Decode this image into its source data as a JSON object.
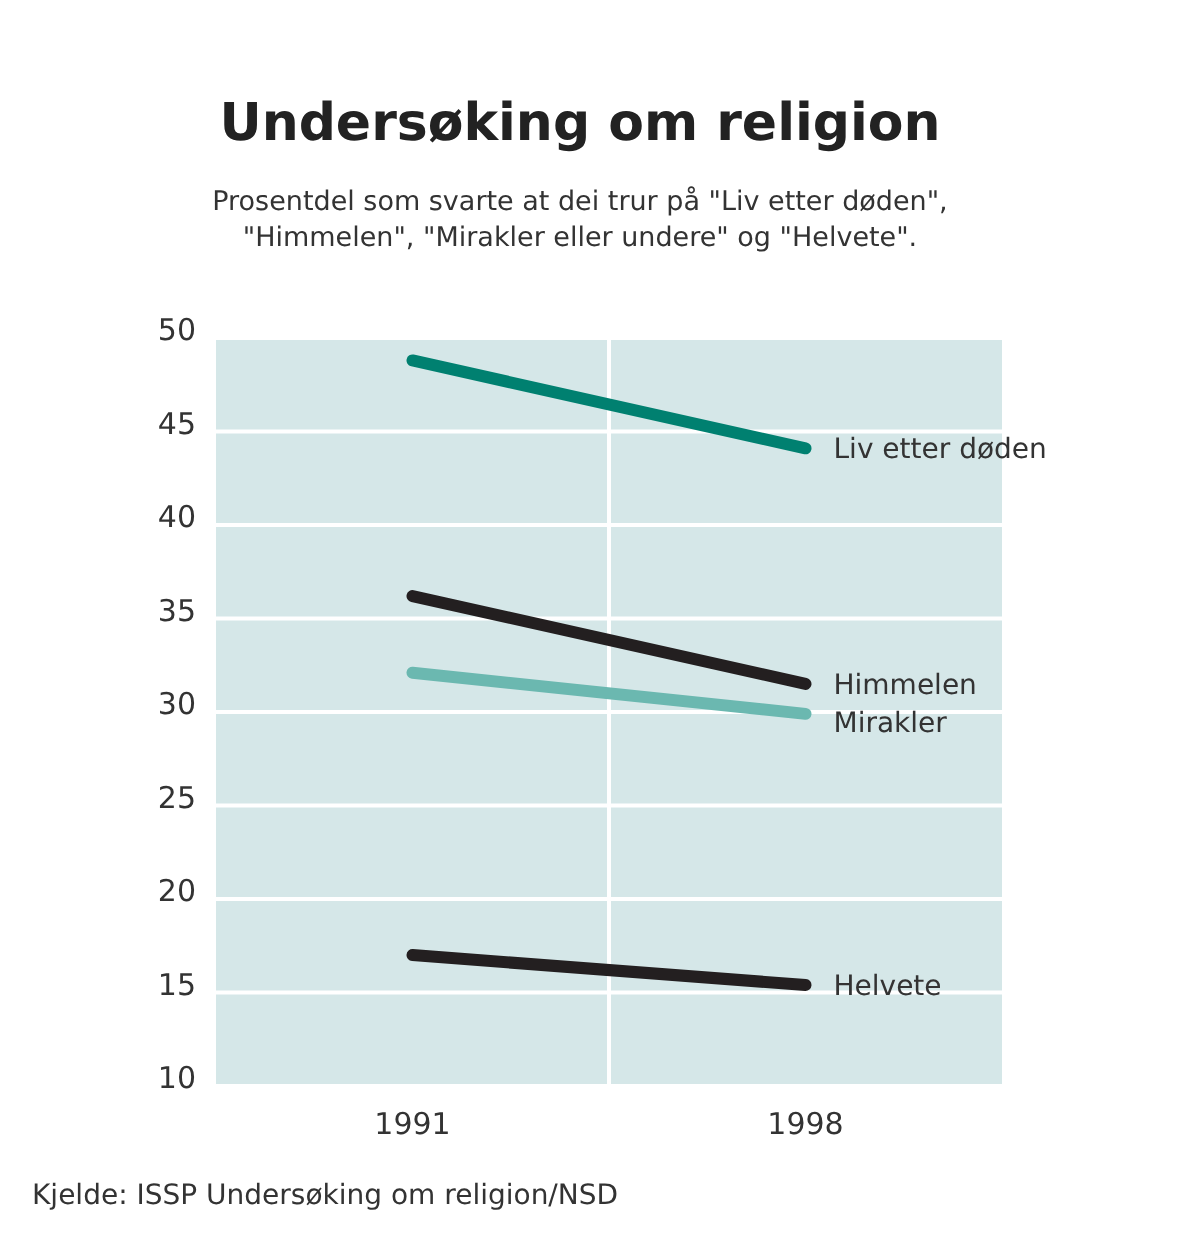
{
  "chart_data": {
    "type": "line",
    "title": "Undersøking om religion",
    "subtitle": "Prosentdel som svarte at dei trur på \"Liv etter døden\",\n\"Himmelen\", \"Mirakler eller undere\" og \"Helvete\".",
    "categories": [
      "1991",
      "1998"
    ],
    "series": [
      {
        "name": "Liv etter døden",
        "color": "#008070",
        "values": [
          48.8,
          44.1
        ]
      },
      {
        "name": "Himmelen",
        "color": "#231f20",
        "values": [
          36.2,
          31.5
        ]
      },
      {
        "name": "Mirakler",
        "color": "#6bb8b0",
        "values": [
          32.1,
          29.9
        ]
      },
      {
        "name": "Helvete",
        "color": "#231f20",
        "values": [
          17,
          15.4
        ]
      }
    ],
    "ylim": [
      10,
      50
    ],
    "yticks": [
      10,
      15,
      20,
      25,
      30,
      35,
      40,
      45,
      50
    ],
    "grid": true,
    "marker": "none",
    "line_style": "solid",
    "annotations": [
      "Kjelde: ISSP Undersøking om religion/NSD"
    ]
  }
}
